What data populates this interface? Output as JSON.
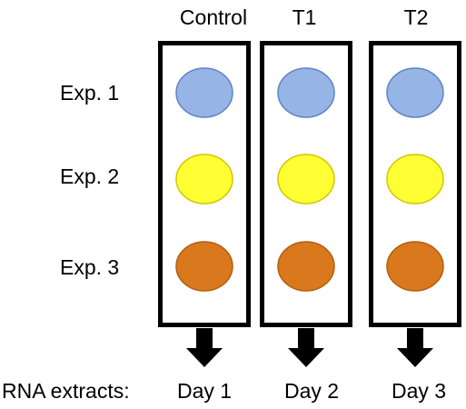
{
  "columns": [
    {
      "header": "Control",
      "day": "Day 1"
    },
    {
      "header": "T1",
      "day": "Day 2"
    },
    {
      "header": "T2",
      "day": "Day 3"
    }
  ],
  "rows": [
    {
      "label": "Exp. 1",
      "fill": "#97b4e6",
      "stroke": "#5f83c4"
    },
    {
      "label": "Exp. 2",
      "fill": "#ffff33",
      "stroke": "#d4c500"
    },
    {
      "label": "Exp. 3",
      "fill": "#d9781c",
      "stroke": "#b45f10"
    }
  ],
  "footer_label": "RNA extracts:"
}
